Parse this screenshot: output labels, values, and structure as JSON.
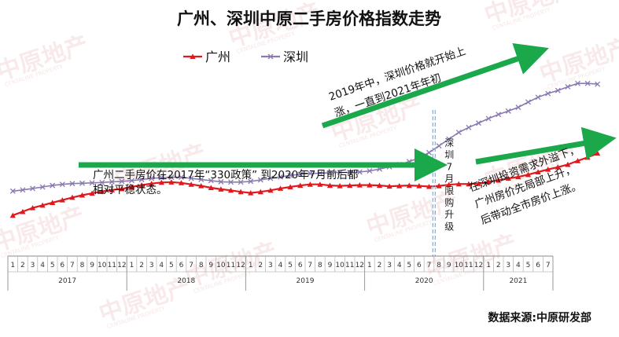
{
  "chart_data": {
    "type": "line",
    "title": "广州、深圳中原二手房价格指数走势",
    "xlabel": "",
    "ylabel": "",
    "grid": false,
    "legend_position": "top-center",
    "x": {
      "years": [
        {
          "label": "2017",
          "months": [
            "1",
            "2",
            "3",
            "4",
            "5",
            "6",
            "7",
            "8",
            "9",
            "10",
            "11",
            "12"
          ]
        },
        {
          "label": "2018",
          "months": [
            "1",
            "2",
            "3",
            "4",
            "5",
            "6",
            "7",
            "8",
            "9",
            "10",
            "11",
            "12"
          ]
        },
        {
          "label": "2019",
          "months": [
            "1",
            "2",
            "3",
            "4",
            "5",
            "6",
            "7",
            "8",
            "9",
            "10",
            "11",
            "12"
          ]
        },
        {
          "label": "2020",
          "months": [
            "1",
            "2",
            "3",
            "4",
            "5",
            "6",
            "7",
            "8",
            "9",
            "10",
            "11",
            "12"
          ]
        },
        {
          "label": "2021",
          "months": [
            "1",
            "2",
            "3",
            "4",
            "5",
            "6",
            "7"
          ]
        }
      ]
    },
    "ylim": [
      50,
      100
    ],
    "series": [
      {
        "name": "广州",
        "color": "#e0191f",
        "marker": "triangle",
        "values": [
          55.0,
          56.0,
          57.0,
          57.7,
          58.4,
          59.1,
          59.8,
          60.4,
          60.9,
          61.4,
          61.8,
          62.1,
          62.6,
          63.1,
          63.5,
          63.8,
          63.9,
          63.7,
          63.3,
          62.9,
          62.4,
          62.0,
          61.7,
          61.3,
          61.0,
          61.3,
          61.7,
          62.2,
          62.6,
          63.0,
          63.3,
          63.3,
          63.0,
          62.9,
          63.0,
          63.1,
          63.1,
          63.0,
          62.8,
          62.9,
          63.0,
          62.9,
          62.7,
          62.9,
          63.2,
          63.4,
          63.4,
          63.5,
          64.0,
          64.4,
          64.9,
          65.3,
          65.9,
          66.6,
          67.3,
          67.9,
          68.6,
          69.6,
          70.5,
          71.6
        ]
      },
      {
        "name": "深圳",
        "color": "#8a7ab0",
        "marker": "cross",
        "values": [
          61.5,
          61.8,
          62.2,
          62.6,
          63.0,
          63.3,
          63.5,
          63.6,
          63.7,
          63.8,
          64.0,
          64.1,
          64.3,
          64.6,
          64.9,
          65.1,
          65.2,
          65.2,
          64.9,
          64.6,
          64.3,
          64.0,
          63.9,
          63.9,
          64.1,
          64.5,
          64.9,
          65.3,
          65.7,
          66.0,
          66.2,
          66.3,
          66.4,
          66.5,
          66.5,
          66.6,
          66.9,
          67.4,
          68.0,
          68.6,
          69.4,
          70.4,
          71.8,
          73.6,
          75.4,
          77.2,
          78.5,
          79.7,
          80.9,
          82.0,
          82.9,
          83.9,
          85.3,
          86.6,
          87.6,
          88.4,
          89.4,
          90.3,
          90.3,
          90.1
        ]
      }
    ],
    "vertical_marker": {
      "after_index": 42,
      "label_chars": [
        "深",
        "圳",
        "7",
        "月",
        "限",
        "购",
        "升",
        "级"
      ]
    },
    "annotations": [
      {
        "id": "gz",
        "lines": [
          "广州二手房价在2017年“330政策” 到2020年7月前后都",
          "相对平稳状态。"
        ]
      },
      {
        "id": "sz",
        "lines": [
          "2019年中，深圳价格就开始上",
          "涨，一直到2021年年初"
        ]
      },
      {
        "id": "spill",
        "lines": [
          "在深圳投资需求外溢下，",
          "广州房价先局部上升，",
          "后带动全市房价上涨。"
        ]
      }
    ]
  },
  "source": "数据来源:中原研发部",
  "watermark": {
    "main": "中原地产",
    "sub": "CENTALINE PROPERTY"
  }
}
